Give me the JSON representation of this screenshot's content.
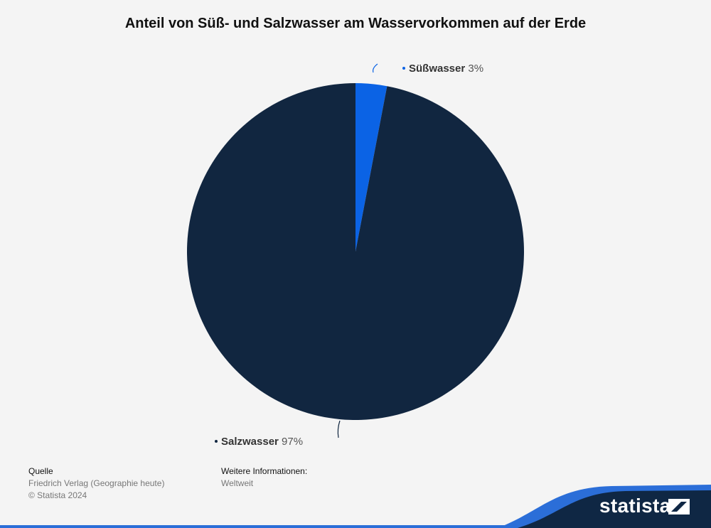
{
  "chart_data": {
    "type": "pie",
    "title": "Anteil von Süß- und Salzwasser am Wasservorkommen auf der Erde",
    "slices": [
      {
        "label": "Süßwasser",
        "value": 3,
        "value_label": "3%",
        "color": "#0b63e5"
      },
      {
        "label": "Salzwasser",
        "value": 97,
        "value_label": "97%",
        "color": "#112640"
      }
    ]
  },
  "footer": {
    "source_heading": "Quelle",
    "source_text": "Friedrich Verlag (Geographie heute)",
    "copyright": "© Statista 2024",
    "info_heading": "Weitere Informationen:",
    "info_text": "Weltweit"
  },
  "brand": {
    "name": "statista",
    "band_color": "#0f2744",
    "accent_color": "#2b6ed8"
  }
}
